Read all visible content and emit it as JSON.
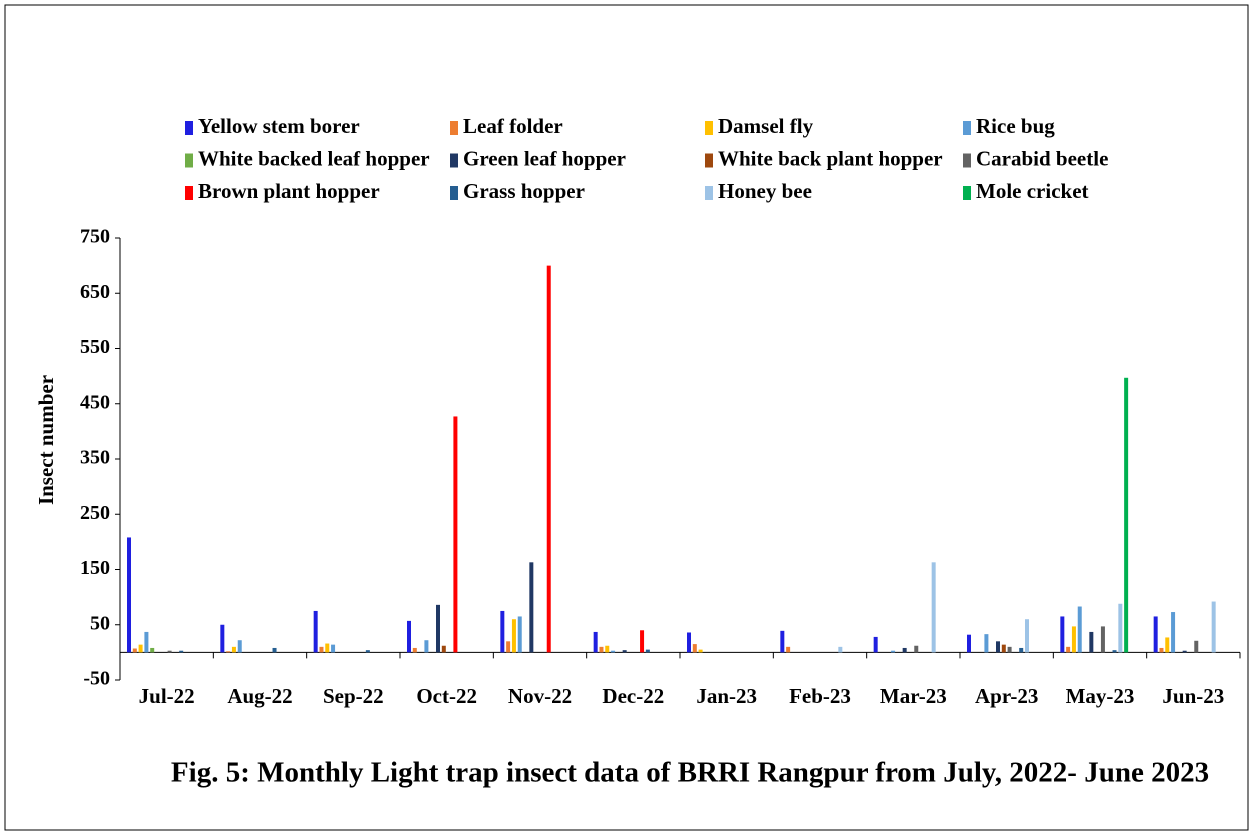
{
  "chart_data": {
    "type": "bar",
    "title": "Fig. 5: Monthly Light trap insect data of BRRI Rangpur from July, 2022- June 2023",
    "y_label": "Insect number",
    "categories": [
      "Jul-22",
      "Aug-22",
      "Sep-22",
      "Oct-22",
      "Nov-22",
      "Dec-22",
      "Jan-23",
      "Feb-23",
      "Mar-23",
      "Apr-23",
      "May-23",
      "Jun-23"
    ],
    "series": [
      {
        "name": "Yellow stem borer",
        "color": "#1f1fe0",
        "values": [
          208,
          50,
          75,
          57,
          75,
          37,
          36,
          39,
          28,
          32,
          65,
          65
        ]
      },
      {
        "name": "Leaf folder",
        "color": "#ed7d31",
        "values": [
          7,
          2,
          10,
          8,
          20,
          10,
          15,
          10,
          0,
          0,
          10,
          8
        ]
      },
      {
        "name": "Damsel fly",
        "color": "#ffc000",
        "values": [
          14,
          10,
          16,
          0,
          60,
          12,
          5,
          0,
          0,
          0,
          47,
          27
        ]
      },
      {
        "name": "Rice bug",
        "color": "#5b9bd5",
        "values": [
          37,
          22,
          14,
          22,
          65,
          3,
          0,
          0,
          3,
          33,
          83,
          73
        ]
      },
      {
        "name": "White backed leaf hopper",
        "color": "#70ad47",
        "values": [
          8,
          0,
          0,
          0,
          0,
          0,
          0,
          0,
          0,
          0,
          0,
          0
        ]
      },
      {
        "name": "Green leaf hopper",
        "color": "#203864",
        "values": [
          0,
          0,
          0,
          86,
          163,
          4,
          0,
          0,
          8,
          20,
          37,
          3
        ]
      },
      {
        "name": "White back plant hopper",
        "color": "#9e480e",
        "values": [
          0,
          0,
          0,
          12,
          0,
          0,
          0,
          0,
          0,
          14,
          0,
          0
        ]
      },
      {
        "name": "Carabid beetle",
        "color": "#636363",
        "values": [
          3,
          0,
          0,
          0,
          0,
          0,
          0,
          0,
          12,
          10,
          47,
          21
        ]
      },
      {
        "name": "Brown plant hopper",
        "color": "#ff0000",
        "values": [
          0,
          0,
          0,
          427,
          700,
          40,
          0,
          0,
          0,
          0,
          0,
          0
        ]
      },
      {
        "name": "Grass hopper",
        "color": "#255e91",
        "values": [
          3,
          8,
          4,
          0,
          0,
          5,
          0,
          0,
          0,
          8,
          4,
          0
        ]
      },
      {
        "name": "Honey bee",
        "color": "#9dc3e6",
        "values": [
          0,
          0,
          0,
          0,
          0,
          0,
          0,
          10,
          163,
          60,
          88,
          92
        ]
      },
      {
        "name": "Mole cricket",
        "color": "#00b050",
        "values": [
          0,
          0,
          0,
          0,
          0,
          0,
          0,
          0,
          0,
          0,
          497,
          0
        ]
      }
    ],
    "ylim": [
      -50,
      750
    ],
    "yticks": [
      -50,
      50,
      150,
      250,
      350,
      450,
      550,
      650,
      750
    ],
    "legend": "top"
  }
}
